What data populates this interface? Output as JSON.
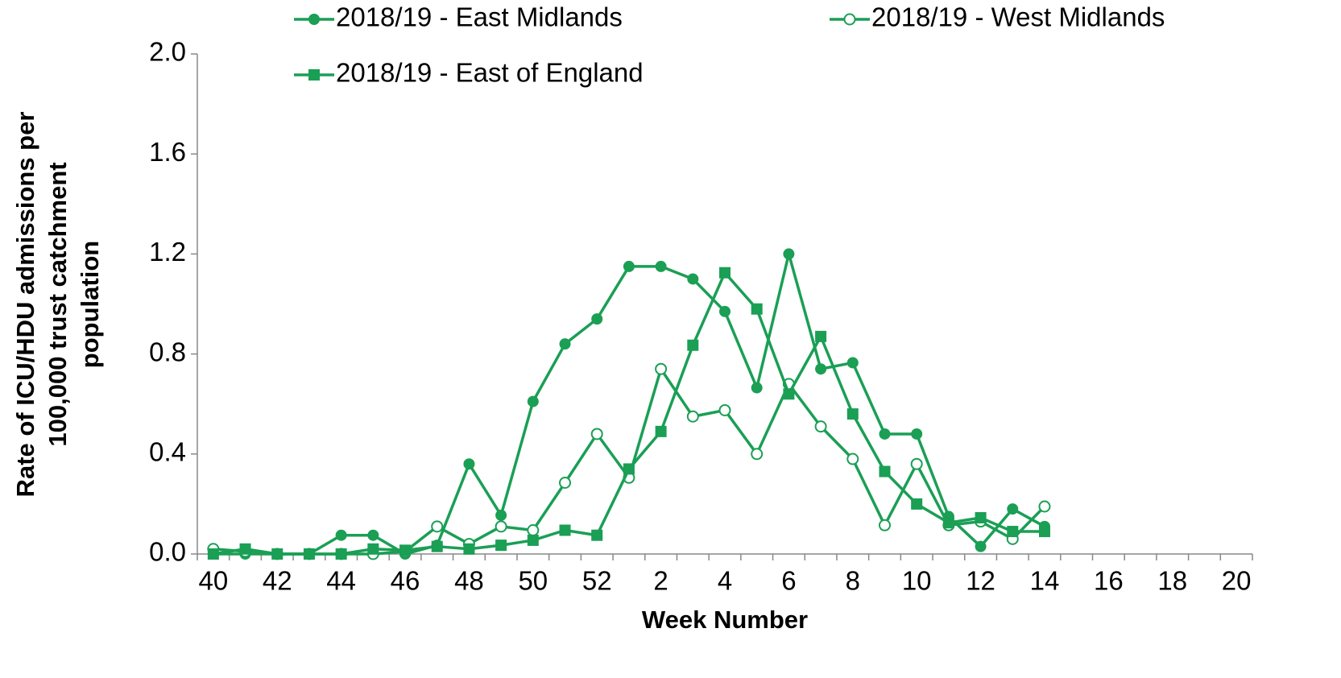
{
  "chart_data": {
    "type": "line",
    "xlabel": "Week Number",
    "ylabel": [
      "Rate of ICU/HDU admissions per",
      "100,000 trust catchment",
      "population"
    ],
    "categories": [
      "40",
      null,
      "42",
      null,
      "44",
      null,
      "46",
      null,
      "48",
      null,
      "50",
      null,
      "52",
      null,
      "2",
      null,
      "4",
      null,
      "6",
      null,
      "8",
      null,
      "10",
      null,
      "12",
      null,
      "14",
      null,
      "16",
      null,
      "18",
      null,
      "20"
    ],
    "ylim": [
      0,
      2
    ],
    "yticks": [
      {
        "value": 0,
        "label": "0.0"
      },
      0.4,
      0.8,
      1.2,
      1.6,
      {
        "value": 2,
        "label": "2.0"
      }
    ],
    "series": [
      {
        "name": "2018/19 - East Midlands",
        "color": "#1a9f55",
        "marker": "circle",
        "values": [
          0,
          0,
          0,
          0,
          0.075,
          0.075,
          0,
          0.035,
          0.36,
          0.155,
          0.61,
          0.84,
          0.94,
          1.15,
          1.15,
          1.1,
          0.97,
          0.665,
          1.2,
          0.74,
          0.765,
          0.48,
          0.48,
          0.15,
          0.03,
          0.18,
          0.11,
          null,
          null,
          null,
          null,
          null,
          null
        ]
      },
      {
        "name": "2018/19 - West Midlands",
        "color": "#1a9f55",
        "marker": "open-circle",
        "values": [
          0.02,
          0.01,
          0,
          0,
          0,
          0,
          0.01,
          0.11,
          0.04,
          0.11,
          0.095,
          0.285,
          0.48,
          0.305,
          0.74,
          0.55,
          0.575,
          0.4,
          0.68,
          0.51,
          0.38,
          0.115,
          0.36,
          0.115,
          0.13,
          0.06,
          0.19,
          null,
          null,
          null,
          null,
          null,
          null
        ]
      },
      {
        "name": "2018/19 - East of England",
        "color": "#1a9f55",
        "marker": "square",
        "values": [
          0,
          0.02,
          0,
          0,
          0,
          0.02,
          0.015,
          0.03,
          0.02,
          0.035,
          0.055,
          0.095,
          0.075,
          0.34,
          0.49,
          0.835,
          1.125,
          0.98,
          0.64,
          0.87,
          0.56,
          0.33,
          0.2,
          0.125,
          0.145,
          0.09,
          0.09,
          null,
          null,
          null,
          null,
          null,
          null
        ]
      }
    ]
  }
}
